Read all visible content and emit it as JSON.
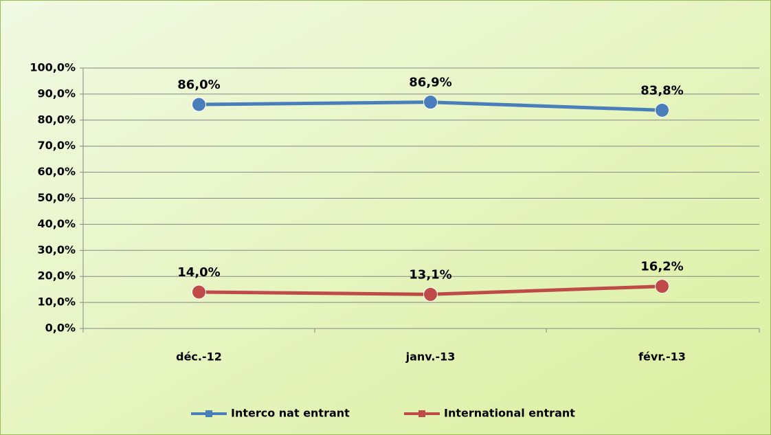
{
  "chart_data": {
    "type": "line",
    "categories": [
      "déc.-12",
      "janv.-13",
      "févr.-13"
    ],
    "series": [
      {
        "name": "Interco nat entrant",
        "color": "#4a7ebb",
        "values": [
          86.0,
          86.9,
          83.8
        ],
        "value_labels": [
          "86,0%",
          "86,9%",
          "83,8%"
        ]
      },
      {
        "name": "International entrant",
        "color": "#be4b48",
        "values": [
          14.0,
          13.1,
          16.2
        ],
        "value_labels": [
          "14,0%",
          "13,1%",
          "16,2%"
        ]
      }
    ],
    "ylim": [
      0,
      100
    ],
    "yticks": [
      {
        "value": 0,
        "label": "0,0%"
      },
      {
        "value": 10,
        "label": "10,0%"
      },
      {
        "value": 20,
        "label": "20,0%"
      },
      {
        "value": 30,
        "label": "30,0%"
      },
      {
        "value": 40,
        "label": "40,0%"
      },
      {
        "value": 50,
        "label": "50,0%"
      },
      {
        "value": 60,
        "label": "60,0%"
      },
      {
        "value": 70,
        "label": "70,0%"
      },
      {
        "value": 80,
        "label": "80,0%"
      },
      {
        "value": 90,
        "label": "90,0%"
      },
      {
        "value": 100,
        "label": "100,0%"
      }
    ],
    "grid": true,
    "legend": "bottom"
  }
}
